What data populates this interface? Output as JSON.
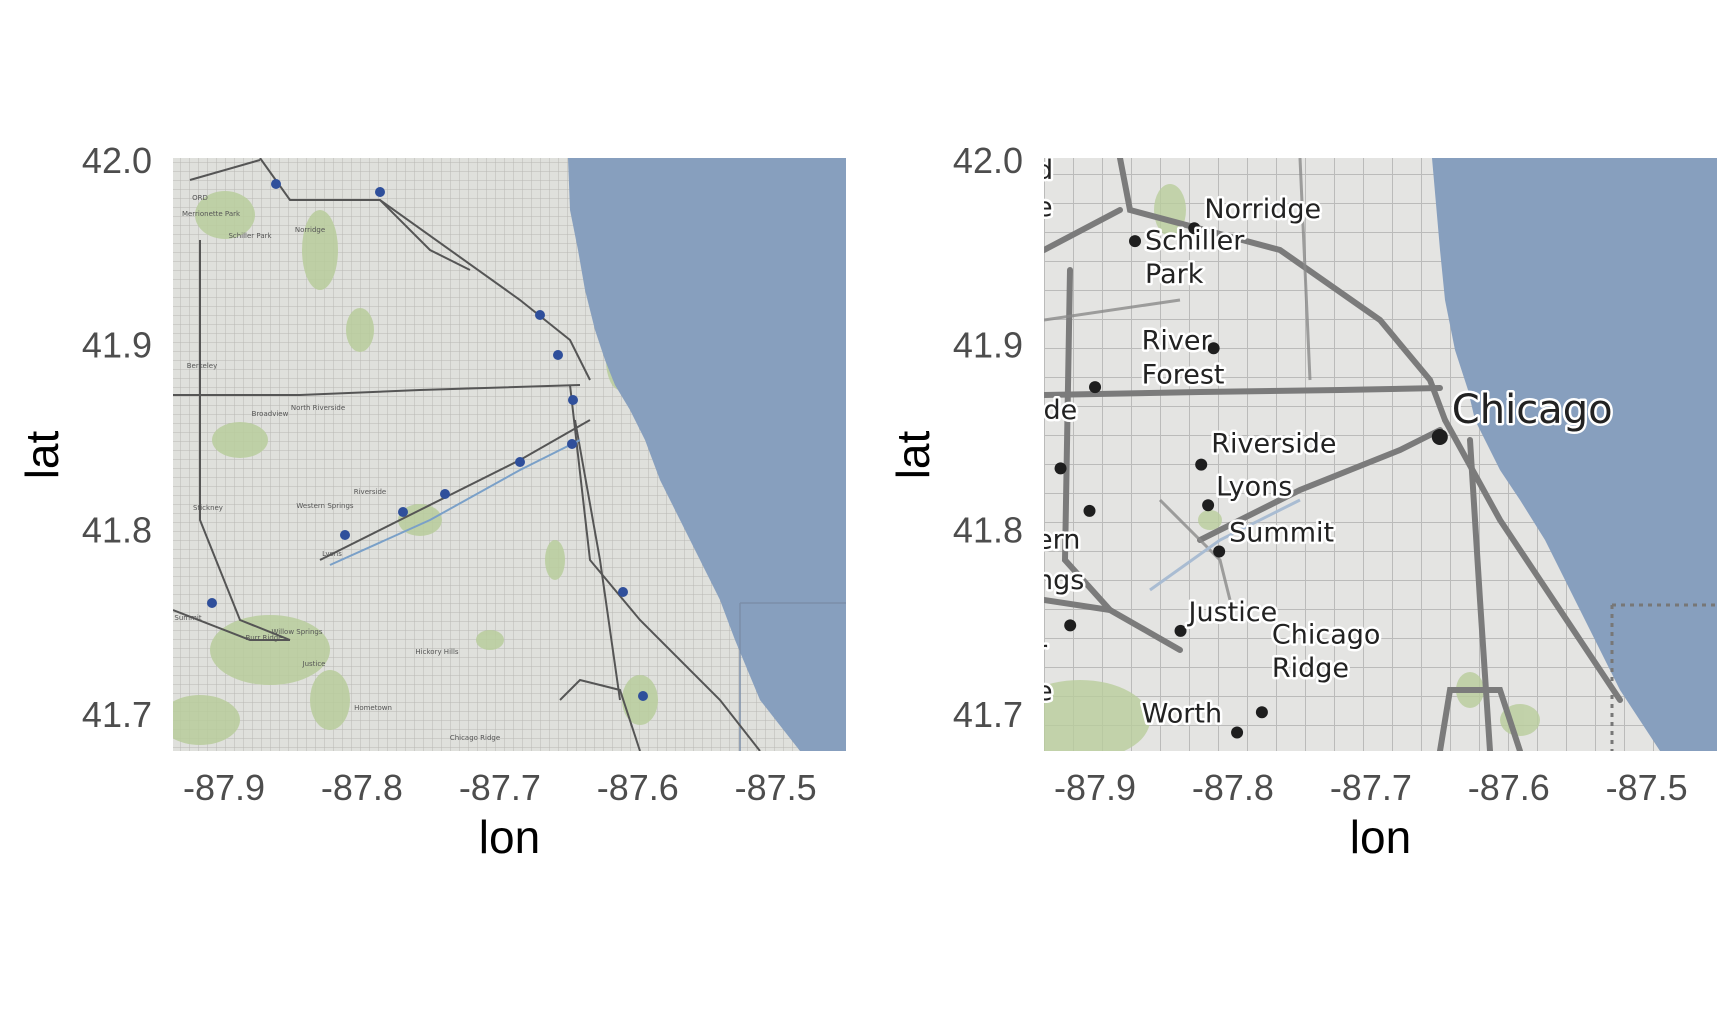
{
  "panels": [
    {
      "id": "street-map",
      "xlabel": "lon",
      "ylabel": "lat",
      "x_ticks": [
        "-87.9",
        "-87.8",
        "-87.7",
        "-87.6",
        "-87.5"
      ],
      "y_ticks": [
        "42.0",
        "41.9",
        "41.8",
        "41.7"
      ],
      "place_labels": [
        "Norridge",
        "Schiller Park",
        "Berkeley",
        "Broadview",
        "North Riverside",
        "Riverside",
        "Stickney",
        "Western Springs",
        "Lyons",
        "Summit",
        "Burr Ridge",
        "Willow Springs",
        "Justice",
        "Hickory Hills",
        "Hometown",
        "Chicago Ridge",
        "Merrionette Park",
        "ORD"
      ]
    },
    {
      "id": "toner-map",
      "xlabel": "lon",
      "ylabel": "lat",
      "x_ticks": [
        "-87.9",
        "-87.8",
        "-87.7",
        "-87.6",
        "-87.5"
      ],
      "y_ticks": [
        "42.0",
        "41.9",
        "41.8",
        "41.7"
      ],
      "places": [
        {
          "name": "Norridge",
          "lon": -87.828,
          "lat": 41.963
        },
        {
          "name": "Schiller Park",
          "lon": -87.871,
          "lat": 41.956
        },
        {
          "name": "River Forest",
          "lon": -87.814,
          "lat": 41.898
        },
        {
          "name": "Riverside",
          "lon": -87.823,
          "lat": 41.835
        },
        {
          "name": "Lyons",
          "lon": -87.818,
          "lat": 41.813
        },
        {
          "name": "Summit",
          "lon": -87.81,
          "lat": 41.788
        },
        {
          "name": "Justice",
          "lon": -87.838,
          "lat": 41.745
        },
        {
          "name": "Chicago Ridge",
          "lon": -87.779,
          "lat": 41.701
        },
        {
          "name": "Worth",
          "lon": -87.797,
          "lat": 41.69
        },
        {
          "name": "Chicago",
          "lon": -87.65,
          "lat": 41.85
        }
      ],
      "edge_fragments": [
        {
          "text": "d",
          "lat": 41.995
        },
        {
          "text": "e",
          "lat": 41.975
        },
        {
          "text": "ide",
          "lat": 41.865
        },
        {
          "text": "ern",
          "lat": 41.795
        },
        {
          "text": "ngs",
          "lat": 41.773
        },
        {
          "text": "r",
          "lat": 41.735
        },
        {
          "text": "e",
          "lat": 41.713
        }
      ],
      "edge_dots": [
        {
          "lon": -87.9,
          "lat": 41.877
        },
        {
          "lon": -87.925,
          "lat": 41.833
        },
        {
          "lon": -87.904,
          "lat": 41.81
        },
        {
          "lon": -87.918,
          "lat": 41.748
        }
      ]
    }
  ],
  "extent": {
    "lon": [
      -87.937,
      -87.449
    ],
    "lat": [
      41.68,
      42.001
    ]
  },
  "colors": {
    "water": "#879fbe",
    "land_street": "#dfe0dc",
    "land_toner": "#e4e4e2",
    "park": "#b9cd9c",
    "road": "#555555",
    "highway_shield": "#2f4f9b"
  }
}
